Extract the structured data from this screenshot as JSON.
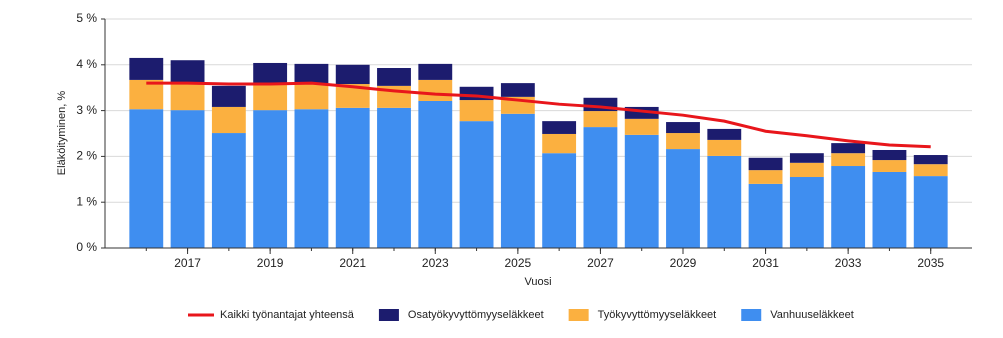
{
  "chart_data": {
    "type": "bar",
    "stacked": true,
    "x_label": "Vuosi",
    "y_label": "Eläköityminen, %",
    "x": [
      2016,
      2017,
      2018,
      2019,
      2020,
      2021,
      2022,
      2023,
      2024,
      2025,
      2026,
      2027,
      2028,
      2029,
      2030,
      2031,
      2032,
      2033,
      2034,
      2035
    ],
    "xlim": [
      2015,
      2036
    ],
    "xticks": [
      2017,
      2019,
      2021,
      2023,
      2025,
      2027,
      2029,
      2031,
      2033,
      2035
    ],
    "ylim": [
      0,
      5
    ],
    "yticks": [
      {
        "value": 0,
        "label": "0 %"
      },
      {
        "value": 1,
        "label": "1 %"
      },
      {
        "value": 2,
        "label": "2 %"
      },
      {
        "value": 3,
        "label": "3 %"
      },
      {
        "value": 4,
        "label": "4 %"
      },
      {
        "value": 5,
        "label": "5 %"
      }
    ],
    "grid": true,
    "legend": "bottom",
    "series": [
      {
        "name": "Kaikki työnantajat yhteensä",
        "type": "line",
        "color": "#e8161b",
        "values": [
          3.6,
          3.6,
          3.58,
          3.58,
          3.6,
          3.52,
          3.43,
          3.36,
          3.32,
          3.23,
          3.14,
          3.08,
          2.99,
          2.9,
          2.77,
          2.55,
          2.45,
          2.34,
          2.25,
          2.21
        ]
      },
      {
        "name": "Osatyökyvyttömyyseläkkeet",
        "type": "bar",
        "color": "#1c1c6e",
        "values": [
          0.48,
          0.48,
          0.46,
          0.44,
          0.42,
          0.42,
          0.39,
          0.35,
          0.29,
          0.3,
          0.28,
          0.29,
          0.26,
          0.24,
          0.24,
          0.27,
          0.21,
          0.22,
          0.22,
          0.2
        ]
      },
      {
        "name": "Työkyvyttömyyseläkkeet",
        "type": "bar",
        "color": "#fbb040",
        "values": [
          0.64,
          0.61,
          0.57,
          0.59,
          0.57,
          0.52,
          0.48,
          0.46,
          0.46,
          0.37,
          0.42,
          0.35,
          0.35,
          0.35,
          0.35,
          0.3,
          0.31,
          0.28,
          0.26,
          0.26
        ]
      },
      {
        "name": "Vanhuuseläkkeet",
        "type": "bar",
        "color": "#3f8ef0",
        "values": [
          3.03,
          3.01,
          2.51,
          3.01,
          3.03,
          3.06,
          3.06,
          3.21,
          2.77,
          2.93,
          2.07,
          2.64,
          2.47,
          2.16,
          2.01,
          1.4,
          1.55,
          1.79,
          1.66,
          1.57
        ]
      }
    ]
  }
}
